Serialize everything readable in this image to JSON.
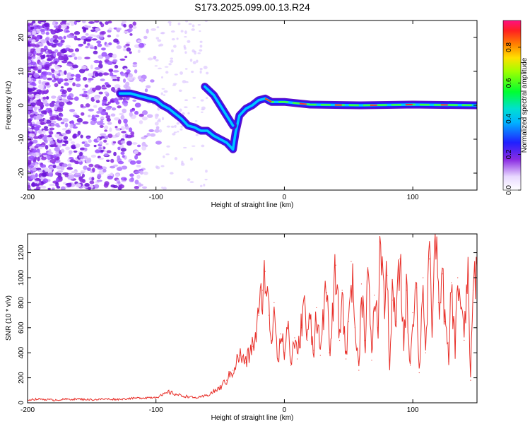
{
  "title": "S173.2025.099.00.13.R24",
  "colors": {
    "snr_line": "#e8302a",
    "axis": "#000000"
  },
  "chart_data": [
    {
      "type": "heatmap",
      "xlabel": "Height of straight line (km)",
      "ylabel": "Frequency (Hz)",
      "xlim": [
        -200,
        150
      ],
      "ylim": [
        -25,
        25
      ],
      "xticks": [
        {
          "value": -200,
          "label": "-200"
        },
        {
          "value": -100,
          "label": "-100"
        },
        {
          "value": 0,
          "label": "0"
        },
        {
          "value": 100,
          "label": "100"
        }
      ],
      "yticks": [
        {
          "value": -20,
          "label": "-20"
        },
        {
          "value": -10,
          "label": "-10"
        },
        {
          "value": 0,
          "label": "0"
        },
        {
          "value": 10,
          "label": "10"
        },
        {
          "value": 20,
          "label": "20"
        }
      ],
      "colorbar": {
        "label": "Normalized spectral amplitude",
        "range": [
          0,
          0.95
        ],
        "ticks": [
          {
            "value": 0.0,
            "label": "0.0"
          },
          {
            "value": 0.2,
            "label": "0.2"
          },
          {
            "value": 0.4,
            "label": "0.4"
          },
          {
            "value": 0.6,
            "label": "0.6"
          },
          {
            "value": 0.8,
            "label": "0.8"
          }
        ]
      },
      "ridge": [
        [
          -128,
          3.5
        ],
        [
          -120,
          3.5
        ],
        [
          -110,
          2.5
        ],
        [
          -100,
          1.5
        ],
        [
          -95,
          0
        ],
        [
          -90,
          -1
        ],
        [
          -85,
          -2.5
        ],
        [
          -80,
          -4
        ],
        [
          -75,
          -6
        ],
        [
          -70,
          -6.5
        ],
        [
          -65,
          -7.5
        ],
        [
          -60,
          -7.5
        ],
        [
          -55,
          -9
        ],
        [
          -50,
          -10
        ],
        [
          -45,
          -11
        ],
        [
          -40,
          -13
        ],
        [
          -38,
          -8
        ],
        [
          -35,
          -3
        ],
        [
          -30,
          -1
        ],
        [
          -25,
          0
        ],
        [
          -20,
          1.5
        ],
        [
          -15,
          2
        ],
        [
          -10,
          1
        ],
        [
          0,
          1
        ],
        [
          20,
          0.2
        ],
        [
          60,
          0
        ],
        [
          100,
          0.2
        ],
        [
          150,
          0
        ]
      ],
      "branch": [
        [
          -62,
          5.5
        ],
        [
          -55,
          3
        ],
        [
          -50,
          0
        ],
        [
          -45,
          -3
        ],
        [
          -40,
          -6
        ]
      ]
    },
    {
      "type": "line",
      "xlabel": "Height of straight line (km)",
      "ylabel": "SNR (10 * v/v)",
      "xlim": [
        -200,
        150
      ],
      "ylim": [
        0,
        1350
      ],
      "xticks": [
        {
          "value": -200,
          "label": "-200"
        },
        {
          "value": -100,
          "label": "-100"
        },
        {
          "value": 0,
          "label": "0"
        },
        {
          "value": 100,
          "label": "100"
        }
      ],
      "yticks": [
        {
          "value": 0,
          "label": "0"
        },
        {
          "value": 200,
          "label": "200"
        },
        {
          "value": 400,
          "label": "400"
        },
        {
          "value": 600,
          "label": "600"
        },
        {
          "value": 800,
          "label": "800"
        },
        {
          "value": 1000,
          "label": "1000"
        },
        {
          "value": 1200,
          "label": "1200"
        }
      ],
      "series": [
        {
          "x": [
            -200,
            -190,
            -180,
            -170,
            -160,
            -150,
            -140,
            -130,
            -120,
            -110,
            -100,
            -95,
            -90,
            -85,
            -80,
            -75,
            -70,
            -65,
            -60,
            -55,
            -50,
            -45,
            -40,
            -35,
            -30,
            -25,
            -22,
            -20,
            -17,
            -15,
            -12,
            -10,
            -8,
            -5,
            -3,
            0,
            3,
            5,
            8,
            10,
            13,
            15,
            18,
            20,
            23,
            25,
            28,
            30,
            33,
            35,
            38,
            40,
            43,
            45,
            48,
            50,
            52,
            55,
            58,
            60,
            63,
            65,
            68,
            70,
            73,
            75,
            78,
            80,
            82,
            84,
            87,
            90,
            93,
            95,
            98,
            100,
            103,
            105,
            108,
            110,
            113,
            115,
            118,
            120,
            123,
            125,
            128,
            130,
            133,
            135,
            138,
            140,
            143,
            145,
            147,
            150
          ],
          "y": [
            25,
            30,
            22,
            28,
            30,
            25,
            30,
            28,
            35,
            40,
            45,
            60,
            85,
            70,
            55,
            50,
            40,
            45,
            60,
            90,
            120,
            180,
            260,
            380,
            320,
            450,
            550,
            700,
            900,
            1050,
            700,
            500,
            800,
            350,
            550,
            400,
            650,
            300,
            520,
            350,
            600,
            820,
            500,
            700,
            420,
            760,
            380,
            700,
            880,
            400,
            730,
            1100,
            500,
            900,
            350,
            650,
            1130,
            600,
            260,
            950,
            500,
            1080,
            340,
            860,
            600,
            1380,
            750,
            1020,
            300,
            820,
            650,
            1150,
            480,
            900,
            300,
            720,
            920,
            240,
            1000,
            400,
            1150,
            620,
            1400,
            800,
            1030,
            650,
            330,
            960,
            430,
            1000,
            750,
            500,
            1070,
            180,
            900,
            1100
          ]
        }
      ]
    }
  ]
}
